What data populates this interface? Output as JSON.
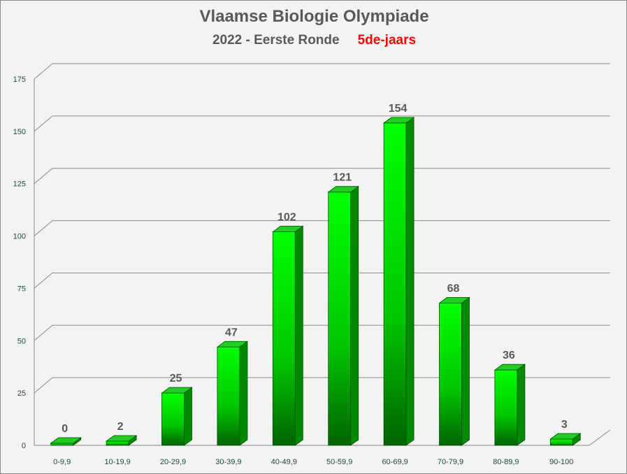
{
  "chart_data": {
    "type": "bar",
    "title": "Vlaamse Biologie Olympiade",
    "subtitle": "2022 - Eerste Ronde",
    "subtitle_highlight": "5de-jaars",
    "categories": [
      "0-9,9",
      "10-19,9",
      "20-29,9",
      "30-39,9",
      "40-49,9",
      "50-59,9",
      "60-69,9",
      "70-79,9",
      "80-89,9",
      "90-100"
    ],
    "values": [
      0,
      2,
      25,
      47,
      102,
      121,
      154,
      68,
      36,
      3
    ],
    "ylim": [
      0,
      175
    ],
    "yticks": [
      0,
      25,
      50,
      75,
      100,
      125,
      150,
      175
    ],
    "grid": true,
    "colors": {
      "bar_front_light": "#00ff00",
      "bar_front_dark": "#006400",
      "bar_top": "#22cc22",
      "bar_side": "#008a00",
      "highlight_text": "#ff0000",
      "title_text": "#595959"
    }
  }
}
